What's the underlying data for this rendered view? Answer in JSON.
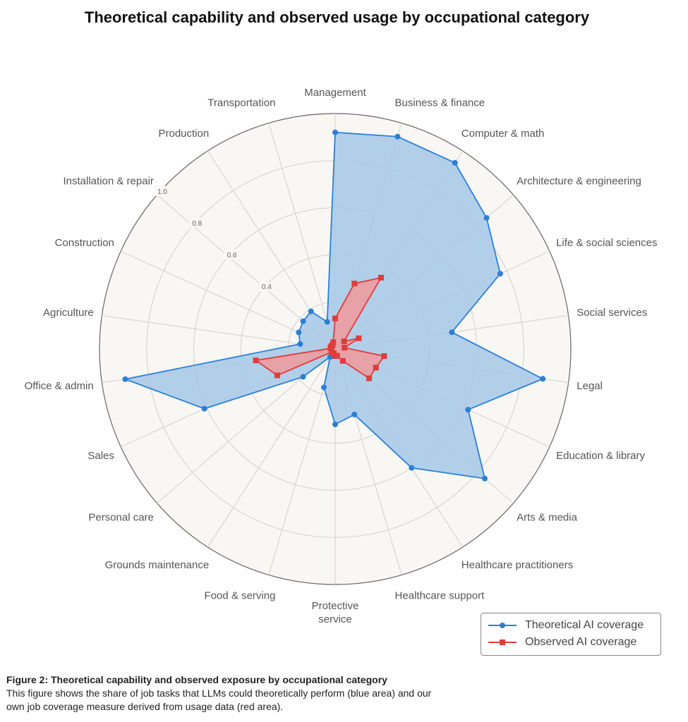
{
  "chart_data": {
    "type": "radar",
    "title": "Theoretical capability and observed usage by occupational category",
    "categories": [
      "Management",
      "Business & finance",
      "Computer & math",
      "Architecture & engineering",
      "Life & social sciences",
      "Social services",
      "Legal",
      "Education & library",
      "Arts & media",
      "Healthcare practitioners",
      "Healthcare support",
      "Protective service",
      "Food & serving",
      "Grounds maintenance",
      "Personal care",
      "Sales",
      "Office & admin",
      "Agriculture",
      "Construction",
      "Installation & repair",
      "Production",
      "Transportation"
    ],
    "radial_ticks": [
      0.4,
      0.6,
      0.8,
      1.0
    ],
    "rlim": [
      0,
      1.0
    ],
    "grid": true,
    "legend_position": "bottom-right",
    "series": [
      {
        "name": "Theoretical AI coverage",
        "color": "#2b7fd8",
        "fill": "#a6c8e8",
        "marker": "circle",
        "values": [
          0.92,
          0.94,
          0.94,
          0.85,
          0.77,
          0.5,
          0.89,
          0.62,
          0.84,
          0.6,
          0.29,
          0.32,
          0.17,
          0.04,
          0.18,
          0.61,
          0.9,
          0.15,
          0.17,
          0.18,
          0.19,
          0.12
        ]
      },
      {
        "name": "Observed AI coverage",
        "color": "#e03c3c",
        "fill": "#ef9a9a",
        "marker": "square",
        "values": [
          0.13,
          0.29,
          0.36,
          0.05,
          0.11,
          0.04,
          0.21,
          0.19,
          0.19,
          0.06,
          0.03,
          0.03,
          0.02,
          0.02,
          0.02,
          0.27,
          0.34,
          0.02,
          0.02,
          0.02,
          0.02,
          0.03
        ]
      }
    ]
  },
  "caption": {
    "heading": "Figure 2: Theoretical capability and observed exposure by occupational category",
    "text": "This figure shows the share of job tasks that LLMs could theoretically perform (blue area) and our own job coverage measure derived from usage data (red area)."
  }
}
